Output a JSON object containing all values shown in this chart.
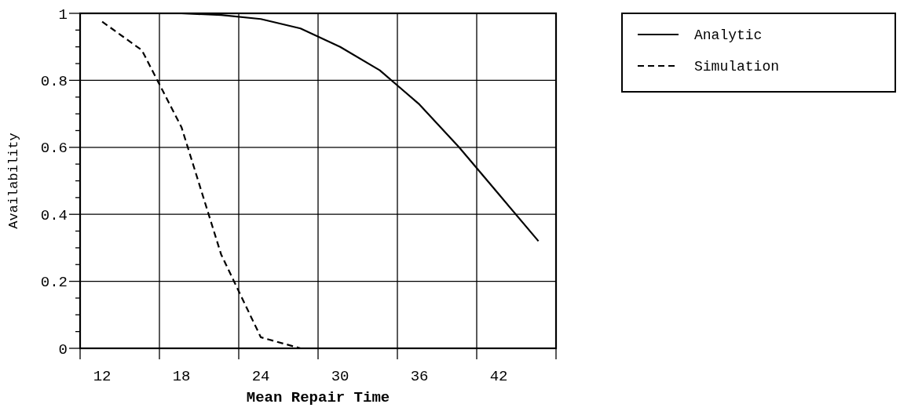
{
  "chart_data": {
    "type": "line",
    "xlabel": "Mean Repair Time",
    "ylabel": "Availability",
    "xlim": [
      10.33,
      46.33
    ],
    "xticks": [
      {
        "value": 10.33,
        "label": null
      },
      {
        "value": 16.33,
        "label": null
      },
      {
        "value": 22.33,
        "label": null
      },
      {
        "value": 28.33,
        "label": null
      },
      {
        "value": 34.33,
        "label": null
      },
      {
        "value": 40.33,
        "label": null
      },
      {
        "value": 46.33,
        "label": null
      },
      12,
      18,
      24,
      30,
      36,
      42
    ],
    "ylim": [
      0,
      1
    ],
    "yticks": [
      0,
      {
        "value": 0.05,
        "label": null
      },
      {
        "value": 0.1,
        "label": null
      },
      {
        "value": 0.15,
        "label": null
      },
      0.2,
      {
        "value": 0.25,
        "label": null
      },
      {
        "value": 0.3,
        "label": null
      },
      {
        "value": 0.35,
        "label": null
      },
      0.4,
      {
        "value": 0.45,
        "label": null
      },
      {
        "value": 0.5,
        "label": null
      },
      {
        "value": 0.55,
        "label": null
      },
      0.6,
      {
        "value": 0.65,
        "label": null
      },
      {
        "value": 0.7,
        "label": null
      },
      {
        "value": 0.75,
        "label": null
      },
      0.8,
      {
        "value": 0.85,
        "label": null
      },
      {
        "value": 0.9,
        "label": null
      },
      {
        "value": 0.95,
        "label": null
      },
      1
    ],
    "grid": true,
    "legend": "top right",
    "series": [
      {
        "name": "Analytic",
        "color": "#000000",
        "line_style": "solid",
        "x": [
          12,
          15,
          18,
          21,
          24,
          27,
          30,
          33,
          36,
          39,
          42,
          45
        ],
        "values": [
          1,
          1,
          1,
          0.995,
          0.983,
          0.955,
          0.9,
          0.83,
          0.728,
          0.6,
          0.46,
          0.32
        ]
      },
      {
        "name": "Simulation",
        "color": "#000000",
        "line_style": "dashed",
        "x": [
          12,
          15,
          18,
          21,
          24,
          27
        ],
        "values": [
          0.975,
          0.89,
          0.66,
          0.28,
          0.033,
          0
        ]
      }
    ]
  }
}
